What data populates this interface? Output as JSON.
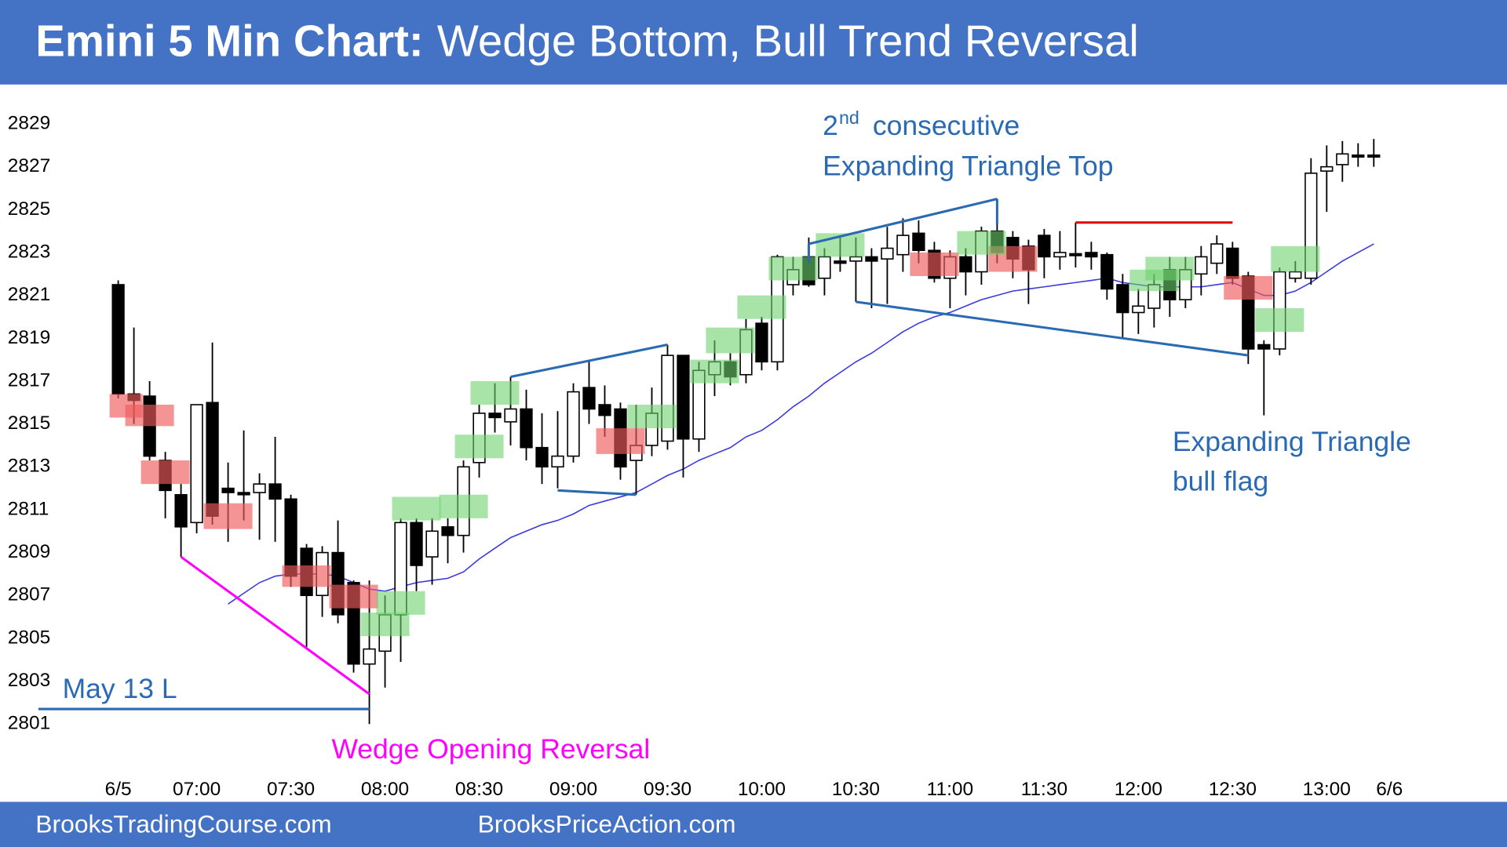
{
  "chart_data": {
    "type": "candlestick",
    "title_prefix": "Emini 5 Min Chart:",
    "title": "Wedge Bottom, Bull Trend Reversal",
    "categories": [
      "6/5",
      null,
      null,
      null,
      null,
      "07:00",
      null,
      null,
      null,
      null,
      null,
      "07:30",
      null,
      null,
      null,
      null,
      null,
      "08:00",
      null,
      null,
      null,
      null,
      null,
      "08:30",
      null,
      null,
      null,
      null,
      null,
      "09:00",
      null,
      null,
      null,
      null,
      null,
      "09:30",
      null,
      null,
      null,
      null,
      null,
      "10:00",
      null,
      null,
      null,
      null,
      null,
      "10:30",
      null,
      null,
      null,
      null,
      null,
      "11:00",
      null,
      null,
      null,
      null,
      null,
      "11:30",
      null,
      null,
      null,
      null,
      null,
      "12:00",
      null,
      null,
      null,
      null,
      null,
      "12:30",
      null,
      null,
      null,
      null,
      null,
      "13:00",
      null,
      null,
      null,
      "6/6"
    ],
    "open": [
      2821.5,
      2816.4,
      2816.3,
      2813.3,
      2811.7,
      2810.4,
      2816,
      2812.0,
      2811.8,
      2811.8,
      2812.2,
      2811.5,
      2809.2,
      2807,
      2809,
      2807.6,
      2803.8,
      2804.4,
      2806.1,
      2810.4,
      2808.8,
      2810.2,
      2809.8,
      2813.2,
      2815.5,
      2815.1,
      2815.7,
      2813.9,
      2813,
      2813.5,
      2816.7,
      2815.9,
      2815.7,
      2813.3,
      2814.0,
      2814.2,
      2818.2,
      2814.3,
      2817.3,
      2817.9,
      2817.3,
      2819.7,
      2817.9,
      2821.5,
      2822.8,
      2821.8,
      2822.6,
      2822.6,
      2822.8,
      2822.7,
      2822.9,
      2823.9,
      2823.1,
      2821.8,
      2822.8,
      2822.1,
      2824.0,
      2823.7,
      2823.3,
      2823.8,
      2822.8,
      2822.9,
      2823.0,
      2822.9,
      2821.5,
      2820.2,
      2820.4,
      2822.2,
      2820.8,
      2822.0,
      2822.5,
      2823.2,
      2821.9,
      2818.7,
      2818.5,
      2821.8,
      2821.8,
      2826.8,
      2827.1,
      2827.5,
      2827.5,
      null
    ],
    "high": [
      2821.7,
      2819.5,
      2817,
      2813.7,
      2812.2,
      2815.9,
      2818.8,
      2813.2,
      2814.7,
      2812.7,
      2814.4,
      2811.7,
      2809.4,
      2809.3,
      2810.5,
      2807.7,
      2807.7,
      2807,
      2810.6,
      2810.6,
      2810.6,
      2810.6,
      2813.3,
      2815.9,
      2816.9,
      2817.2,
      2816.6,
      2815.5,
      2815.6,
      2816.9,
      2818.0,
      2816.8,
      2816.0,
      2815.9,
      2816.7,
      2818.7,
      2818.2,
      2817.9,
      2818.9,
      2818.3,
      2819.9,
      2820,
      2822.9,
      2822.8,
      2823.7,
      2823.2,
      2823.8,
      2823.7,
      2823.2,
      2824.2,
      2824.6,
      2824.5,
      2823.5,
      2823.1,
      2823.2,
      2824.2,
      2825.5,
      2824.0,
      2823.6,
      2824.1,
      2824.0,
      2824.4,
      2823.5,
      2823.0,
      2822.0,
      2821.3,
      2822.0,
      2822.8,
      2822.8,
      2823.3,
      2823.8,
      2823.5,
      2822.1,
      2818.9,
      2822.3,
      2822.6,
      2827.4,
      2828.0,
      2828.2,
      2828.1,
      2828.3,
      null
    ],
    "low": [
      2816.2,
      2815.0,
      2813.3,
      2810.6,
      2808.8,
      2809.9,
      2810.3,
      2809.5,
      2810.5,
      2809.6,
      2809.5,
      2807.4,
      2804.6,
      2806.0,
      2805.7,
      2803.4,
      2801.0,
      2802.7,
      2803.9,
      2807.2,
      2807.5,
      2808.5,
      2809.0,
      2812.5,
      2814.6,
      2814.0,
      2813.3,
      2812.2,
      2812.0,
      2813.2,
      2815.0,
      2814.4,
      2812.4,
      2811.7,
      2813.5,
      2813.8,
      2812.5,
      2813.7,
      2816.3,
      2816.8,
      2816.9,
      2817.5,
      2817.5,
      2821.0,
      2821.4,
      2821.0,
      2822.1,
      2820.7,
      2820.4,
      2820.6,
      2822.1,
      2822.5,
      2821.6,
      2820.4,
      2821.0,
      2821.5,
      2822.5,
      2821.8,
      2820.6,
      2821.8,
      2822.2,
      2822.3,
      2822.2,
      2820.8,
      2819.0,
      2819.2,
      2819.5,
      2820.0,
      2820.4,
      2821.0,
      2822.0,
      2821.5,
      2817.8,
      2815.4,
      2818.2,
      2821.6,
      2821.5,
      2824.9,
      2826.3,
      2827.0,
      2827.0,
      null
    ],
    "close": [
      2816.4,
      2816.1,
      2813.5,
      2811.9,
      2810.2,
      2815.9,
      2810.7,
      2811.8,
      2811.7,
      2812.2,
      2811.5,
      2807.9,
      2807.0,
      2809,
      2806.1,
      2803.8,
      2804.5,
      2806.1,
      2810.4,
      2808.4,
      2810.0,
      2809.8,
      2813.0,
      2815.5,
      2815.3,
      2815.7,
      2813.9,
      2813.0,
      2813.5,
      2816.5,
      2815.7,
      2815.4,
      2813.0,
      2814.0,
      2815.5,
      2818.2,
      2814.3,
      2817.5,
      2817.9,
      2817.2,
      2819.4,
      2817.9,
      2822.8,
      2822.2,
      2821.5,
      2822.8,
      2822.5,
      2822.8,
      2822.6,
      2823.2,
      2823.8,
      2823.1,
      2821.8,
      2822.8,
      2822.1,
      2824.0,
      2823.0,
      2822.7,
      2822.2,
      2822.8,
      2823.0,
      2822.9,
      2822.8,
      2821.3,
      2820.2,
      2820.5,
      2821.5,
      2820.8,
      2822.2,
      2822.8,
      2823.4,
      2821.8,
      2818.5,
      2818.5,
      2822.1,
      2822.1,
      2826.7,
      2827.0,
      2827.6,
      2827.5,
      2827.5,
      null
    ],
    "up_color": "#ffffff",
    "down_color": "#000000",
    "moving_average": {
      "color": "#3a3adf",
      "values": [
        null,
        null,
        null,
        null,
        null,
        null,
        null,
        2806.6,
        2807.1,
        2807.6,
        2807.9,
        2808.0,
        2808.0,
        2808.0,
        2807.9,
        2807.6,
        2807.3,
        2807.2,
        2807.4,
        2807.6,
        2807.7,
        2807.8,
        2808.1,
        2808.7,
        2809.2,
        2809.7,
        2810.0,
        2810.3,
        2810.5,
        2810.8,
        2811.2,
        2811.4,
        2811.6,
        2811.8,
        2812.2,
        2812.6,
        2812.9,
        2813.3,
        2813.6,
        2813.9,
        2814.4,
        2814.7,
        2815.2,
        2815.8,
        2816.3,
        2816.9,
        2817.4,
        2817.9,
        2818.3,
        2818.8,
        2819.3,
        2819.7,
        2820.0,
        2820.2,
        2820.5,
        2820.8,
        2821.0,
        2821.2,
        2821.3,
        2821.4,
        2821.5,
        2821.6,
        2821.7,
        2821.8,
        2821.6,
        2821.5,
        2821.4,
        2821.4,
        2821.4,
        2821.4,
        2821.5,
        2821.6,
        2821.3,
        2821.0,
        2821.0,
        2821.2,
        2821.6,
        2822.1,
        2822.6,
        2823.0,
        2823.4,
        null
      ]
    },
    "boxes": [
      {
        "bars": [
          0,
          1
        ],
        "low": 2815.3,
        "high": 2816.4,
        "color": "rgba(240,90,90,0.65)"
      },
      {
        "bars": [
          1,
          3
        ],
        "low": 2814.9,
        "high": 2815.9,
        "color": "rgba(240,90,90,0.65)"
      },
      {
        "bars": [
          2,
          4
        ],
        "low": 2812.2,
        "high": 2813.3,
        "color": "rgba(240,90,90,0.65)"
      },
      {
        "bars": [
          6,
          8
        ],
        "low": 2810.1,
        "high": 2811.3,
        "color": "rgba(240,90,90,0.65)"
      },
      {
        "bars": [
          11,
          13
        ],
        "low": 2807.4,
        "high": 2808.4,
        "color": "rgba(240,90,90,0.65)"
      },
      {
        "bars": [
          14,
          16
        ],
        "low": 2806.4,
        "high": 2807.5,
        "color": "rgba(240,90,90,0.65)"
      },
      {
        "bars": [
          31,
          33
        ],
        "low": 2813.6,
        "high": 2814.8,
        "color": "rgba(240,90,90,0.65)"
      },
      {
        "bars": [
          51,
          53
        ],
        "low": 2821.9,
        "high": 2823.0,
        "color": "rgba(240,90,90,0.65)"
      },
      {
        "bars": [
          56,
          58
        ],
        "low": 2822.1,
        "high": 2823.3,
        "color": "rgba(240,90,90,0.65)"
      },
      {
        "bars": [
          71,
          73
        ],
        "low": 2820.8,
        "high": 2821.9,
        "color": "rgba(240,90,90,0.65)"
      },
      {
        "bars": [
          17,
          19
        ],
        "low": 2806.1,
        "high": 2807.2,
        "color": "rgba(110,210,110,0.6)"
      },
      {
        "bars": [
          16,
          18
        ],
        "low": 2805.1,
        "high": 2806.2,
        "color": "rgba(110,210,110,0.6)"
      },
      {
        "bars": [
          18,
          20
        ],
        "low": 2810.5,
        "high": 2811.6,
        "color": "rgba(110,210,110,0.6)"
      },
      {
        "bars": [
          21,
          23
        ],
        "low": 2810.6,
        "high": 2811.7,
        "color": "rgba(110,210,110,0.6)"
      },
      {
        "bars": [
          22,
          24
        ],
        "low": 2813.4,
        "high": 2814.5,
        "color": "rgba(110,210,110,0.6)"
      },
      {
        "bars": [
          23,
          25
        ],
        "low": 2815.9,
        "high": 2817.0,
        "color": "rgba(110,210,110,0.6)"
      },
      {
        "bars": [
          33,
          35
        ],
        "low": 2814.8,
        "high": 2815.9,
        "color": "rgba(110,210,110,0.6)"
      },
      {
        "bars": [
          37,
          39
        ],
        "low": 2816.9,
        "high": 2818.0,
        "color": "rgba(110,210,110,0.6)"
      },
      {
        "bars": [
          38,
          40
        ],
        "low": 2818.3,
        "high": 2819.5,
        "color": "rgba(110,210,110,0.6)"
      },
      {
        "bars": [
          40,
          42
        ],
        "low": 2819.9,
        "high": 2821.0,
        "color": "rgba(110,210,110,0.6)"
      },
      {
        "bars": [
          42,
          44
        ],
        "low": 2821.7,
        "high": 2822.8,
        "color": "rgba(110,210,110,0.6)"
      },
      {
        "bars": [
          45,
          47
        ],
        "low": 2822.8,
        "high": 2823.9,
        "color": "rgba(110,210,110,0.6)"
      },
      {
        "bars": [
          54,
          56
        ],
        "low": 2822.9,
        "high": 2824.0,
        "color": "rgba(110,210,110,0.6)"
      },
      {
        "bars": [
          66,
          68
        ],
        "low": 2821.7,
        "high": 2822.8,
        "color": "rgba(110,210,110,0.6)"
      },
      {
        "bars": [
          65,
          67
        ],
        "low": 2821.2,
        "high": 2822.2,
        "color": "rgba(110,210,110,0.6)"
      },
      {
        "bars": [
          73,
          75
        ],
        "low": 2819.3,
        "high": 2820.4,
        "color": "rgba(110,210,110,0.6)"
      },
      {
        "bars": [
          74,
          76
        ],
        "low": 2822.1,
        "high": 2823.3,
        "color": "rgba(110,210,110,0.6)"
      }
    ],
    "lines": [
      {
        "bars": [
          4,
          16
        ],
        "prices": [
          2808.8,
          2802.4
        ],
        "color": "#ff00ff"
      },
      {
        "bars": [
          null,
          16
        ],
        "prices": [
          2801.7,
          2801.7
        ],
        "color": "#2a6ab3"
      },
      {
        "bars": [
          25,
          35
        ],
        "prices": [
          2817.2,
          2818.7
        ],
        "color": "#2a6ab3"
      },
      {
        "bars": [
          28,
          33
        ],
        "prices": [
          2811.9,
          2811.7
        ],
        "color": "#2a6ab3"
      },
      {
        "bars": [
          44,
          56
        ],
        "prices": [
          2823.4,
          2825.5
        ],
        "color": "#2a6ab3"
      },
      {
        "bars": [
          44,
          44
        ],
        "prices": [
          2823.4,
          2822.5
        ],
        "color": "#2a6ab3"
      },
      {
        "bars": [
          56,
          56
        ],
        "prices": [
          2825.5,
          2824.3
        ],
        "color": "#2a6ab3"
      },
      {
        "bars": [
          47,
          72
        ],
        "prices": [
          2820.7,
          2818.2
        ],
        "color": "#2a6ab3"
      },
      {
        "bars": [
          61,
          71
        ],
        "prices": [
          2824.4,
          2824.4
        ],
        "color": "#e00000"
      }
    ],
    "annotations": [
      {
        "text": "2",
        "color": "#2a6ab3"
      },
      {
        "text": "nd",
        "color": "#2a6ab3"
      },
      {
        "text": "consecutive",
        "color": "#2a6ab3"
      },
      {
        "text": "Expanding Triangle Top",
        "color": "#2a6ab3"
      },
      {
        "text": "Expanding Triangle",
        "color": "#2a6ab3"
      },
      {
        "text": "bull flag",
        "color": "#2a6ab3"
      },
      {
        "text": "May 13 L",
        "color": "#2a6ab3"
      },
      {
        "text": "Wedge Opening Reversal",
        "color": "#ff00ff"
      }
    ],
    "ylim": [
      2799,
      2831
    ],
    "yticks": [
      2801,
      2803,
      2805,
      2807,
      2809,
      2811,
      2813,
      2815,
      2817,
      2819,
      2821,
      2823,
      2825,
      2827,
      2829
    ],
    "grid": false,
    "footer": [
      "BrooksTradingCourse.com",
      "BrooksPriceAction.com"
    ]
  }
}
